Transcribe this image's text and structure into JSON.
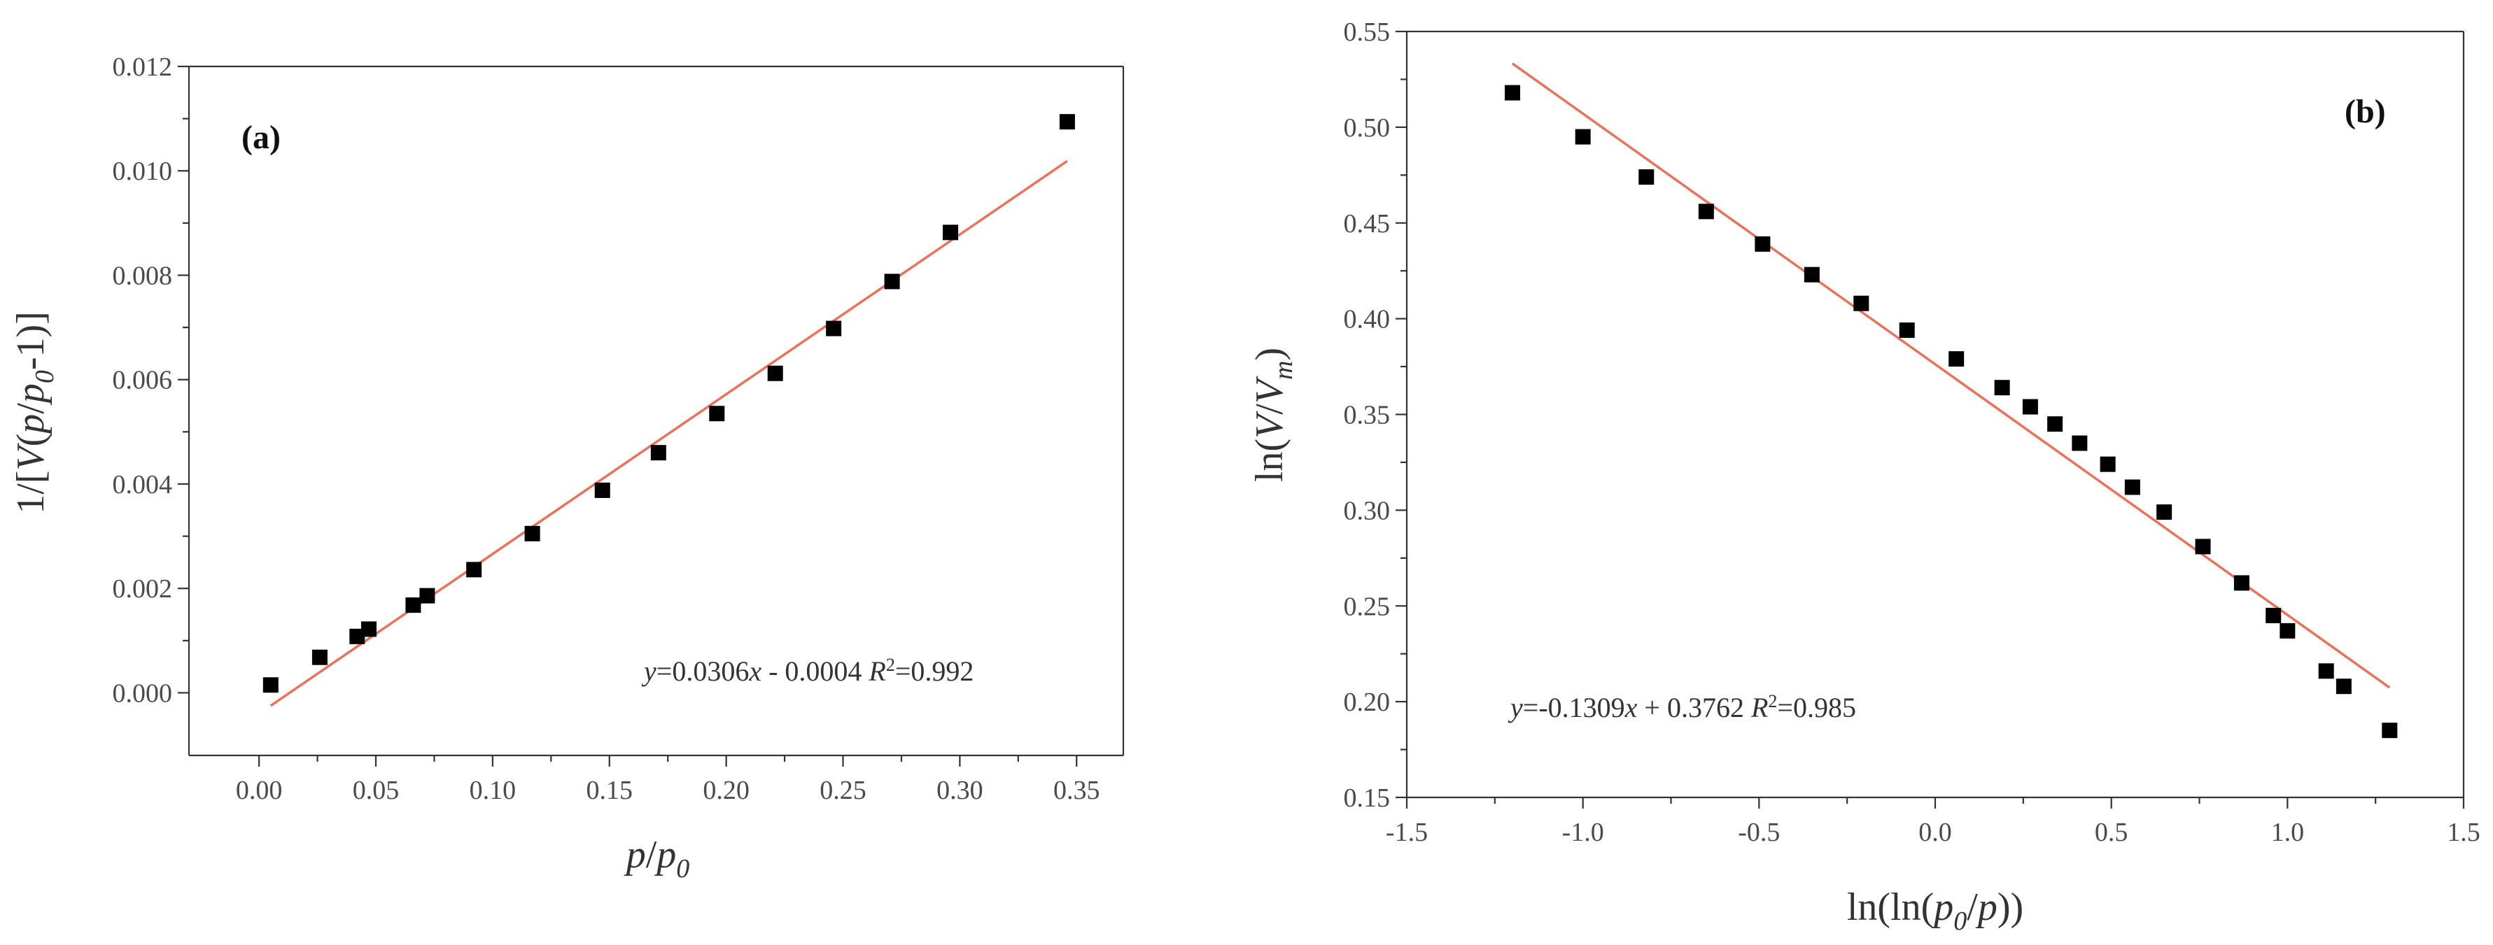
{
  "chart_data": [
    {
      "type": "scatter",
      "panel_label": "(a)",
      "xlabel": "p/p0",
      "ylabel": "1/[V(p/p0-1)]",
      "xlim": [
        -0.03,
        0.37
      ],
      "ylim": [
        -0.0012,
        0.012
      ],
      "xticks": [
        0.0,
        0.05,
        0.1,
        0.15,
        0.2,
        0.25,
        0.3,
        0.35
      ],
      "xtick_labels": [
        "0.00",
        "0.05",
        "0.10",
        "0.15",
        "0.20",
        "0.25",
        "0.30",
        "0.35"
      ],
      "yticks": [
        0.0,
        0.002,
        0.004,
        0.006,
        0.008,
        0.01,
        0.012
      ],
      "ytick_labels": [
        "0.000",
        "0.002",
        "0.004",
        "0.006",
        "0.008",
        "0.010",
        "0.012"
      ],
      "x": [
        0.005,
        0.026,
        0.042,
        0.047,
        0.066,
        0.072,
        0.092,
        0.117,
        0.147,
        0.171,
        0.196,
        0.221,
        0.246,
        0.271,
        0.296,
        0.346
      ],
      "y": [
        0.00015,
        0.00068,
        0.00108,
        0.00122,
        0.00168,
        0.00186,
        0.00236,
        0.00305,
        0.00388,
        0.0046,
        0.00535,
        0.00612,
        0.00698,
        0.00788,
        0.00882,
        0.01094
      ],
      "fit": {
        "slope": 0.0306,
        "intercept": -0.0004,
        "x_range": [
          0.005,
          0.346
        ]
      },
      "equation_text": {
        "y": "y",
        "eq": "=0.0306",
        "x": "x",
        "rest": " - 0.0004  ",
        "R": "R",
        "sup": "2",
        "r2": "=0.992"
      },
      "line_color": "#e8735a",
      "marker_color": "#000000"
    },
    {
      "type": "scatter",
      "panel_label": "(b)",
      "xlabel": "ln(ln(p0/p))",
      "ylabel": "ln(V/Vm)",
      "xlim": [
        -1.5,
        1.5
      ],
      "ylim": [
        0.15,
        0.55
      ],
      "xticks": [
        -1.5,
        -1.0,
        -0.5,
        0.0,
        0.5,
        1.0,
        1.5
      ],
      "xtick_labels": [
        "-1.5",
        "-1.0",
        "-0.5",
        "0.0",
        "0.5",
        "1.0",
        "1.5"
      ],
      "yticks": [
        0.15,
        0.2,
        0.25,
        0.3,
        0.35,
        0.4,
        0.45,
        0.5,
        0.55
      ],
      "ytick_labels": [
        "0.15",
        "0.20",
        "0.25",
        "0.30",
        "0.35",
        "0.40",
        "0.45",
        "0.50",
        "0.55"
      ],
      "x": [
        -1.2,
        -1.0,
        -0.82,
        -0.65,
        -0.49,
        -0.35,
        -0.21,
        -0.08,
        0.06,
        0.19,
        0.27,
        0.34,
        0.41,
        0.49,
        0.56,
        0.65,
        0.76,
        0.87,
        0.96,
        1.0,
        1.11,
        1.16,
        1.29
      ],
      "y": [
        0.518,
        0.495,
        0.474,
        0.456,
        0.439,
        0.423,
        0.408,
        0.394,
        0.379,
        0.364,
        0.354,
        0.345,
        0.335,
        0.324,
        0.312,
        0.299,
        0.281,
        0.262,
        0.245,
        0.237,
        0.216,
        0.208,
        0.185
      ],
      "fit": {
        "slope": -0.1309,
        "intercept": 0.3762,
        "x_range": [
          -1.2,
          1.29
        ]
      },
      "equation_text": {
        "y": "y",
        "eq": "=-0.1309",
        "x": "x",
        "rest": " + 0.3762  ",
        "R": "R",
        "sup": "2",
        "r2": "=0.985"
      },
      "line_color": "#e8735a",
      "marker_color": "#000000"
    }
  ]
}
